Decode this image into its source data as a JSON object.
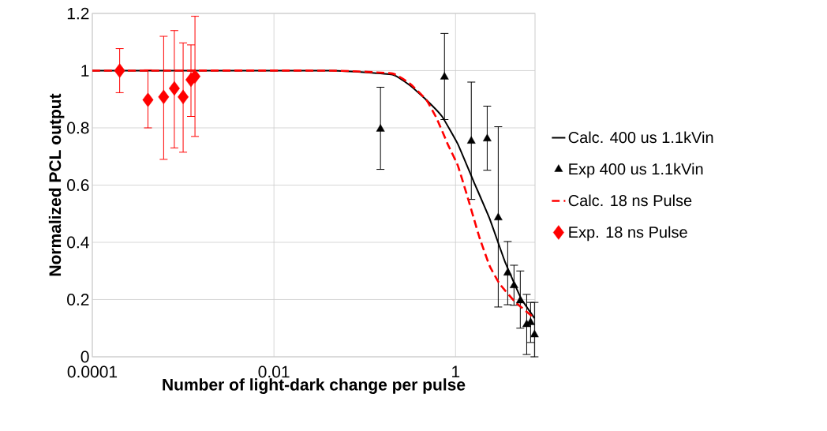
{
  "chart_data": {
    "type": "line",
    "xlabel": "Number of light-dark change per pulse",
    "ylabel": "Normalized PCL output",
    "log": "x",
    "grid": true,
    "legend": "right",
    "xlim": [
      0.0001,
      7.5
    ],
    "ylim": [
      0,
      1.2
    ],
    "xticks": [
      0.0001,
      0.01,
      1
    ],
    "yticks": [
      0,
      0.2,
      0.4,
      0.6,
      0.8,
      1,
      1.2
    ],
    "series": [
      {
        "name": "Calc. 400 us 1.1kVin",
        "color": "#000000",
        "marker": "none",
        "line_style": "solid",
        "x": [
          0.0001,
          0.043,
          0.201,
          0.319,
          0.476,
          0.71,
          1.06,
          1.58,
          2.37,
          3.53,
          5.27,
          7.4
        ],
        "values": [
          1,
          1,
          0.986,
          0.947,
          0.898,
          0.84,
          0.743,
          0.613,
          0.483,
          0.329,
          0.204,
          0.135
        ]
      },
      {
        "name": "Exp 400 us 1.1kVin",
        "type": "scatter",
        "color": "#000000",
        "marker": "triangle",
        "x": [
          0.149,
          0.755,
          1.49,
          2.23,
          2.95,
          3.75,
          4.4,
          5.16,
          6.07,
          6.7,
          7.4
        ],
        "values": [
          0.796,
          0.978,
          0.754,
          0.762,
          0.486,
          0.293,
          0.249,
          0.196,
          0.113,
          0.12,
          0.077
        ],
        "errors": [
          [
            0.655,
            0.942
          ],
          [
            0.829,
            1.13
          ],
          [
            0.55,
            0.96
          ],
          [
            0.652,
            0.876
          ],
          [
            0.174,
            0.804
          ],
          [
            0.182,
            0.403
          ],
          [
            0.18,
            0.32
          ],
          [
            0.1,
            0.3
          ],
          [
            0.008,
            0.218
          ],
          [
            0.05,
            0.19
          ],
          [
            0,
            0.19
          ]
        ]
      },
      {
        "name": "Calc. 18 ns Pulse",
        "color": "#ff0000",
        "marker": "none",
        "line_style": "dashed",
        "x": [
          0.0001,
          0.043,
          0.201,
          0.319,
          0.476,
          0.618,
          0.82,
          1.06,
          1.38,
          1.82,
          2.37,
          3.07,
          4.58,
          7.4
        ],
        "values": [
          1,
          1,
          0.99,
          0.953,
          0.898,
          0.834,
          0.743,
          0.668,
          0.55,
          0.42,
          0.318,
          0.254,
          0.19,
          0.135
        ]
      },
      {
        "name": "Exp. 18 ns Pulse",
        "type": "scatter",
        "color": "#ff0000",
        "marker": "diamond",
        "x": [
          0.0002,
          0.00041,
          0.00061,
          0.0008,
          0.001,
          0.00122,
          0.00135
        ],
        "values": [
          1,
          0.898,
          0.908,
          0.938,
          0.908,
          0.968,
          0.98
        ],
        "errors": [
          [
            0.923,
            1.077
          ],
          [
            0.8,
            1.003
          ],
          [
            0.69,
            1.12
          ],
          [
            0.73,
            1.14
          ],
          [
            0.715,
            1.097
          ],
          [
            0.84,
            1.09
          ],
          [
            0.77,
            1.19
          ]
        ]
      }
    ]
  }
}
